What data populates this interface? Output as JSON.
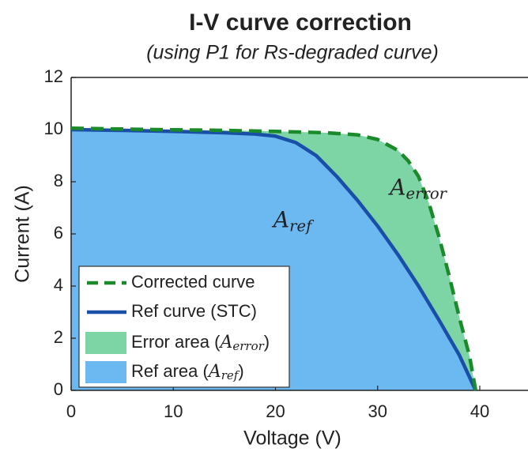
{
  "chart_data": {
    "type": "line",
    "title": "I-V curve correction",
    "subtitle": "(using P1 for Rs-degraded curve)",
    "x_label": "Voltage (V)",
    "y_label": "Current (A)",
    "xlim": [
      0,
      45
    ],
    "ylim": [
      0,
      12
    ],
    "xticks": [
      0,
      10,
      20,
      30,
      40
    ],
    "yticks": [
      0,
      2,
      4,
      6,
      8,
      10,
      12
    ],
    "legend": "lower left",
    "series": [
      {
        "name": "Corrected curve",
        "color": "#1a8a2a",
        "style": "dashed",
        "x": [
          0,
          5,
          10,
          15,
          20,
          25,
          28,
          30,
          32,
          33,
          34,
          35,
          36,
          37,
          38,
          39,
          39.6
        ],
        "values": [
          10.05,
          10.02,
          9.99,
          9.97,
          9.93,
          9.88,
          9.8,
          9.62,
          9.2,
          8.8,
          8.2,
          7.2,
          5.9,
          4.4,
          2.8,
          1.3,
          0
        ]
      },
      {
        "name": "Ref curve (STC)",
        "color": "#1a4fa8",
        "style": "solid",
        "x": [
          0,
          5,
          10,
          15,
          18,
          20,
          22,
          24,
          26,
          28,
          30,
          32,
          34,
          36,
          38,
          39.6
        ],
        "values": [
          10,
          9.97,
          9.93,
          9.88,
          9.83,
          9.75,
          9.5,
          9.0,
          8.2,
          7.3,
          6.3,
          5.2,
          4.0,
          2.7,
          1.35,
          0
        ]
      }
    ],
    "areas": [
      {
        "name": "Error area (A_error)",
        "color": "#7dd5a6"
      },
      {
        "name": "Ref area (A_ref)",
        "color": "#6cb9f2"
      }
    ],
    "annotations": [
      {
        "base": "A",
        "sub": "error"
      },
      {
        "base": "A",
        "sub": "ref"
      }
    ]
  }
}
